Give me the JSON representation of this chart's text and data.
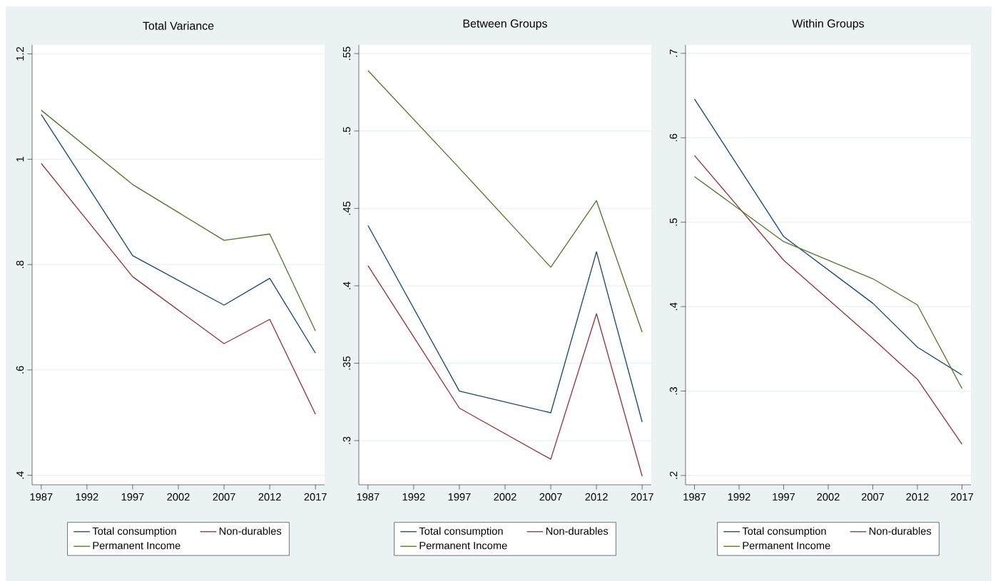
{
  "chart_data": [
    {
      "type": "line",
      "title": "Total Variance",
      "x": [
        1987,
        1997,
        2007,
        2012,
        2017
      ],
      "series": [
        {
          "name": "Total consumption",
          "color": "#1a476f",
          "values": [
            1.085,
            0.817,
            0.723,
            0.774,
            0.632
          ]
        },
        {
          "name": "Non-durables",
          "color": "#90353b",
          "values": [
            0.992,
            0.777,
            0.65,
            0.696,
            0.516
          ]
        },
        {
          "name": "Permanent Income",
          "color": "#55752f",
          "values": [
            1.093,
            0.952,
            0.846,
            0.858,
            0.674
          ]
        }
      ],
      "xlim": [
        1986,
        2018
      ],
      "ylim": [
        0.382,
        1.217
      ],
      "xticks": [
        1987,
        1992,
        1997,
        2002,
        2007,
        2012,
        2017
      ],
      "yticks": [
        {
          "value": 0.4,
          "label": ".4"
        },
        {
          "value": 0.6,
          "label": ".6"
        },
        {
          "value": 0.8,
          "label": ".8"
        },
        {
          "value": 1,
          "label": "1"
        },
        {
          "value": 1.2,
          "label": "1.2"
        }
      ],
      "grid": "y",
      "legend": "bottom"
    },
    {
      "type": "line",
      "title": "Between Groups",
      "x": [
        1987,
        1997,
        2007,
        2012,
        2017
      ],
      "series": [
        {
          "name": "Total consumption",
          "color": "#1a476f",
          "values": [
            0.439,
            0.332,
            0.318,
            0.422,
            0.312
          ]
        },
        {
          "name": "Non-durables",
          "color": "#90353b",
          "values": [
            0.413,
            0.321,
            0.288,
            0.382,
            0.277
          ]
        },
        {
          "name": "Permanent Income",
          "color": "#55752f",
          "values": [
            0.539,
            0.476,
            0.412,
            0.455,
            0.37
          ]
        }
      ],
      "xlim": [
        1986,
        2018
      ],
      "ylim": [
        0.2715,
        0.5556
      ],
      "xticks": [
        1987,
        1992,
        1997,
        2002,
        2007,
        2012,
        2017
      ],
      "yticks": [
        {
          "value": 0.3,
          "label": ".3"
        },
        {
          "value": 0.35,
          "label": ".35"
        },
        {
          "value": 0.4,
          "label": ".4"
        },
        {
          "value": 0.45,
          "label": ".45"
        },
        {
          "value": 0.5,
          "label": ".5"
        },
        {
          "value": 0.55,
          "label": ".55"
        }
      ],
      "grid": "y",
      "legend": "bottom"
    },
    {
      "type": "line",
      "title": "Within Groups",
      "x": [
        1987,
        1997,
        2007,
        2012,
        2017
      ],
      "series": [
        {
          "name": "Total consumption",
          "color": "#1a476f",
          "values": [
            0.646,
            0.483,
            0.404,
            0.352,
            0.319
          ]
        },
        {
          "name": "Non-durables",
          "color": "#90353b",
          "values": [
            0.579,
            0.455,
            0.362,
            0.314,
            0.237
          ]
        },
        {
          "name": "Permanent Income",
          "color": "#55752f",
          "values": [
            0.554,
            0.477,
            0.433,
            0.402,
            0.303
          ]
        }
      ],
      "xlim": [
        1986,
        2018
      ],
      "ylim": [
        0.189,
        0.71
      ],
      "xticks": [
        1987,
        1992,
        1997,
        2002,
        2007,
        2012,
        2017
      ],
      "yticks": [
        {
          "value": 0.2,
          "label": ".2"
        },
        {
          "value": 0.3,
          "label": ".3"
        },
        {
          "value": 0.4,
          "label": ".4"
        },
        {
          "value": 0.5,
          "label": ".5"
        },
        {
          "value": 0.6,
          "label": ".6"
        },
        {
          "value": 0.7,
          "label": ".7"
        }
      ],
      "grid": "y",
      "legend": "bottom"
    }
  ]
}
